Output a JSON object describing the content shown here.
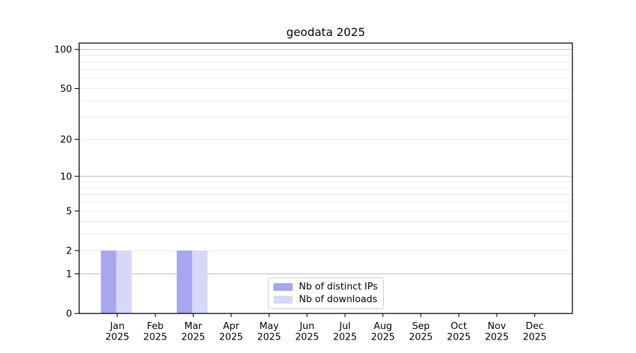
{
  "chart_data": {
    "type": "bar",
    "title": "geodata 2025",
    "categories": [
      "Jan",
      "Feb",
      "Mar",
      "Apr",
      "May",
      "Jun",
      "Jul",
      "Aug",
      "Sep",
      "Oct",
      "Nov",
      "Dec"
    ],
    "x_year_label": "2025",
    "series": [
      {
        "name": "Nb of distinct IPs",
        "color": "#a6a6f1",
        "values": [
          2,
          0,
          2,
          0,
          0,
          0,
          0,
          0,
          0,
          0,
          0,
          0
        ]
      },
      {
        "name": "Nb of downloads",
        "color": "#d7d7f8",
        "values": [
          2,
          0,
          2,
          0,
          0,
          0,
          0,
          0,
          0,
          0,
          0,
          0
        ]
      }
    ],
    "y_axis": {
      "scale": "log1p",
      "ylim": [
        0,
        112
      ],
      "ticks": [
        0,
        1,
        2,
        5,
        10,
        20,
        50,
        100
      ],
      "major_gridlines": [
        1,
        10,
        100
      ],
      "minor_gridlines": [
        2,
        3,
        4,
        5,
        6,
        7,
        8,
        9,
        20,
        30,
        40,
        50,
        60,
        70,
        80,
        90
      ]
    },
    "legend": {
      "position": "lower center"
    },
    "colors": {
      "spine": "#000000",
      "major_grid": "#b3b3b3",
      "minor_grid": "#e9e9e9",
      "text": "#000000",
      "background": "#ffffff"
    }
  }
}
